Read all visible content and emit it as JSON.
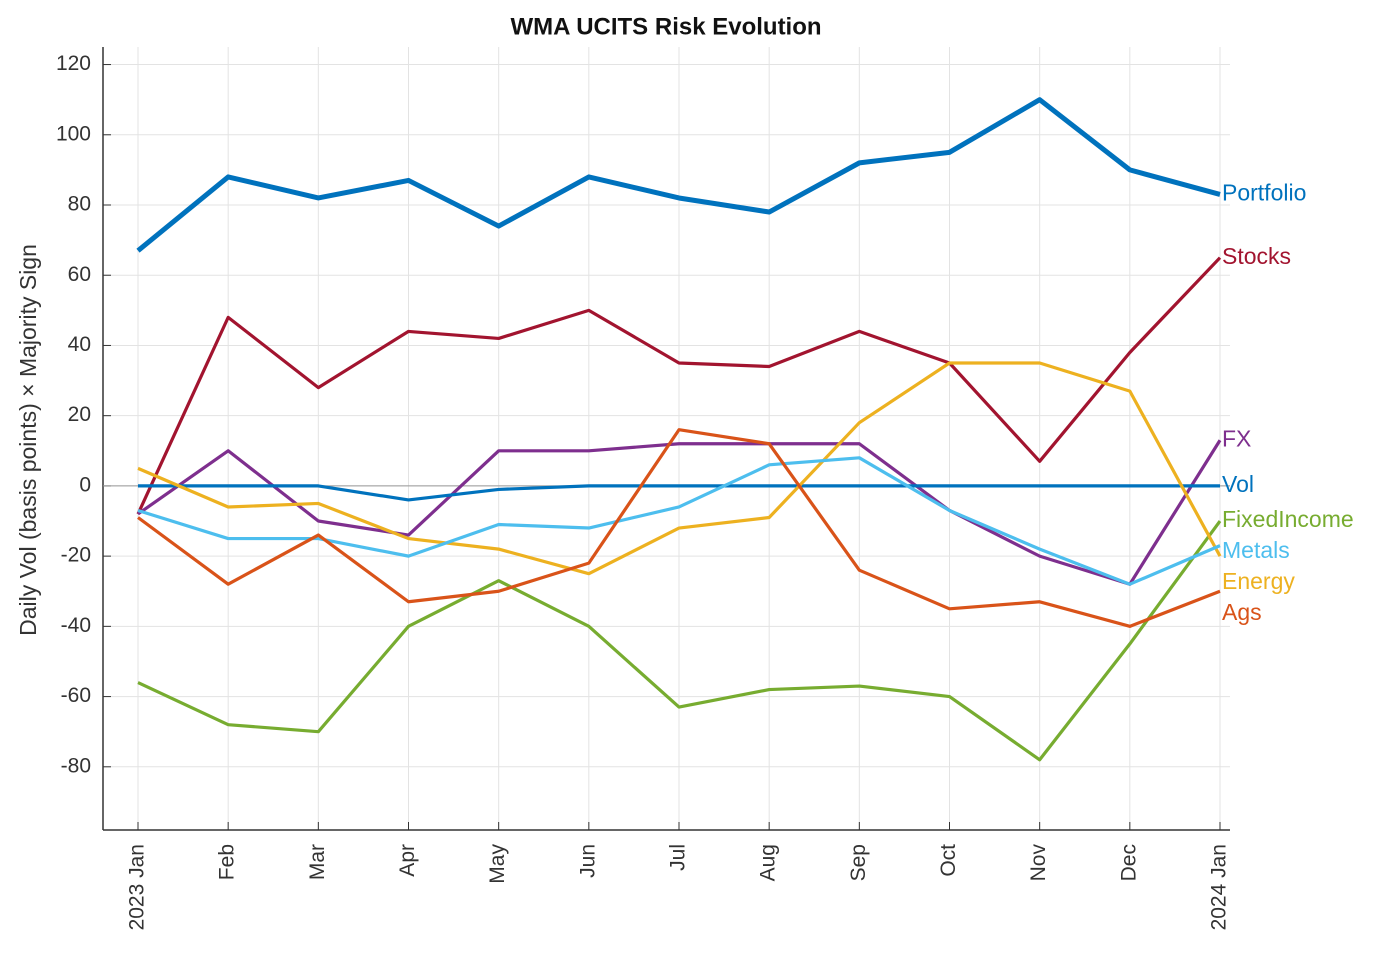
{
  "chart_data": {
    "type": "line",
    "title": "WMA UCITS Risk Evolution",
    "y_label": "Daily Vol (basis points) × Majority Sign",
    "x": [
      "2023-01",
      "2023-02",
      "2023-03",
      "2023-04",
      "2023-05",
      "2023-06",
      "2023-07",
      "2023-08",
      "2023-09",
      "2023-10",
      "2023-11",
      "2023-12",
      "2024-01"
    ],
    "xlim": [
      "2023-01",
      "2024-01"
    ],
    "xticks": [
      {
        "value": "2023-01",
        "label": "2023 Jan"
      },
      {
        "value": "2023-02",
        "label": "Feb"
      },
      {
        "value": "2023-03",
        "label": "Mar"
      },
      {
        "value": "2023-04",
        "label": "Apr"
      },
      {
        "value": "2023-05",
        "label": "May"
      },
      {
        "value": "2023-06",
        "label": "Jun"
      },
      {
        "value": "2023-07",
        "label": "Jul"
      },
      {
        "value": "2023-08",
        "label": "Aug"
      },
      {
        "value": "2023-09",
        "label": "Sep"
      },
      {
        "value": "2023-10",
        "label": "Oct"
      },
      {
        "value": "2023-11",
        "label": "Nov"
      },
      {
        "value": "2023-12",
        "label": "Dec"
      },
      {
        "value": "2024-01",
        "label": "2024 Jan"
      }
    ],
    "ylim": [
      -98,
      125
    ],
    "yticks": [
      -80,
      -60,
      -40,
      -20,
      0,
      20,
      40,
      60,
      80,
      100,
      120
    ],
    "grid": true,
    "series": [
      {
        "name": "Portfolio",
        "color": "#0072bd",
        "values": [
          67,
          88,
          82,
          87,
          74,
          88,
          82,
          78,
          92,
          95,
          110,
          90,
          83
        ]
      },
      {
        "name": "Stocks",
        "color": "#a2142f",
        "values": [
          -8,
          48,
          28,
          44,
          42,
          50,
          35,
          34,
          44,
          35,
          7,
          38,
          65
        ]
      },
      {
        "name": "FX",
        "color": "#7e2f8e",
        "values": [
          -8,
          10,
          -10,
          -14,
          10,
          10,
          12,
          12,
          12,
          -7,
          -20,
          -28,
          13
        ]
      },
      {
        "name": "Vol",
        "color": "#0072bd",
        "values": [
          0,
          0,
          0,
          -4,
          -1,
          0,
          0,
          0,
          0,
          0,
          0,
          0,
          0
        ]
      },
      {
        "name": "FixedIncome",
        "color": "#77ac30",
        "values": [
          -56,
          -68,
          -70,
          -40,
          -27,
          -40,
          -63,
          -58,
          -57,
          -60,
          -78,
          -45,
          -10
        ]
      },
      {
        "name": "Energy",
        "color": "#edb120",
        "values": [
          5,
          -6,
          -5,
          -15,
          -18,
          -25,
          -12,
          -9,
          18,
          35,
          35,
          27,
          -20
        ]
      },
      {
        "name": "Metals",
        "color": "#4dbeee",
        "values": [
          -7,
          -15,
          -15,
          -20,
          -11,
          -12,
          -6,
          6,
          8,
          -7,
          -18,
          -28,
          -17
        ]
      },
      {
        "name": "Ags",
        "color": "#d95319",
        "values": [
          -9,
          -28,
          -14,
          -33,
          -30,
          -22,
          16,
          12,
          -24,
          -35,
          -33,
          -40,
          -30
        ]
      }
    ]
  }
}
